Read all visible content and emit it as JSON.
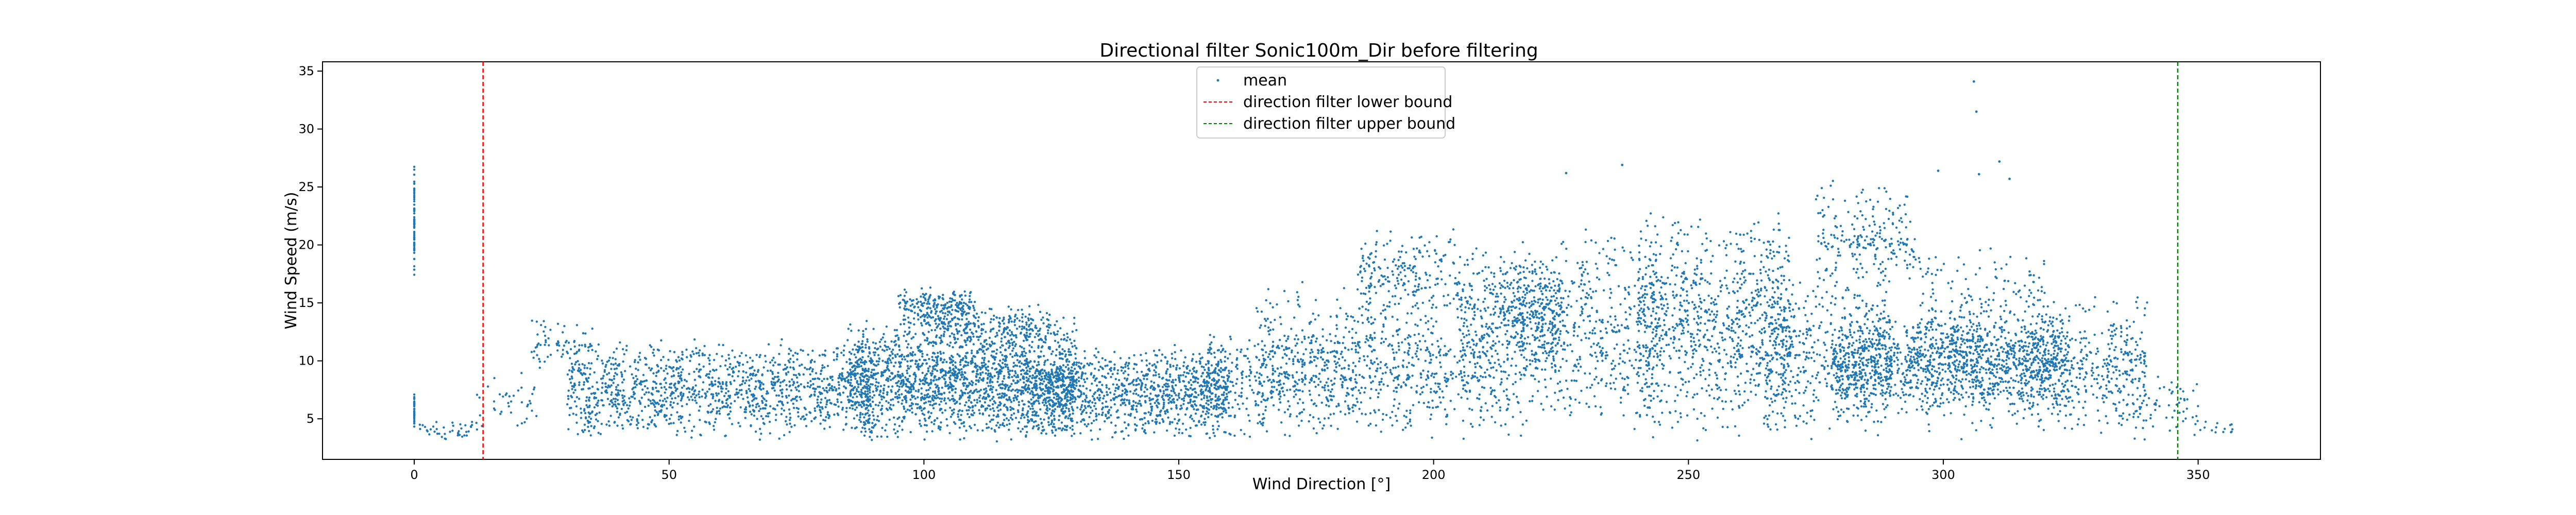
{
  "chart_data": {
    "type": "scatter",
    "title": "Directional filter Sonic100m_Dir before filtering",
    "xlabel": "Wind Direction [°]",
    "ylabel": "Wind Speed (m/s)",
    "xlim": [
      -18,
      374
    ],
    "ylim": [
      1.5,
      35.8
    ],
    "xticks": [
      0,
      50,
      100,
      150,
      200,
      250,
      300,
      350
    ],
    "yticks": [
      5,
      10,
      15,
      20,
      25,
      30,
      35
    ],
    "grid": false,
    "legend_position": "top-center",
    "series": [
      {
        "name": "mean",
        "color": "#1f77b4",
        "marker": "point",
        "clusters": [
          {
            "x": [
              0,
              0
            ],
            "y": [
              17,
              27.4
            ],
            "n": 70
          },
          {
            "x": [
              0,
              0
            ],
            "y": [
              3.8,
              7.2
            ],
            "n": 35
          },
          {
            "x": [
              1,
              12
            ],
            "y": [
              3.2,
              5.0
            ],
            "n": 40
          },
          {
            "x": [
              12,
              24
            ],
            "y": [
              3.5,
              9.5
            ],
            "n": 40
          },
          {
            "x": [
              23,
              35
            ],
            "y": [
              8.5,
              14
            ],
            "n": 70
          },
          {
            "x": [
              30,
              90
            ],
            "y": [
              3,
              12
            ],
            "n": 1300
          },
          {
            "x": [
              85,
              130
            ],
            "y": [
              3,
              14
            ],
            "n": 1900
          },
          {
            "x": [
              95,
              110
            ],
            "y": [
              13,
              16.5
            ],
            "n": 200
          },
          {
            "x": [
              100,
              125
            ],
            "y": [
              11,
              15
            ],
            "n": 200
          },
          {
            "x": [
              120,
              160
            ],
            "y": [
              3,
              11.5
            ],
            "n": 1100
          },
          {
            "x": [
              155,
              185
            ],
            "y": [
              3,
              13
            ],
            "n": 450
          },
          {
            "x": [
              165,
              200
            ],
            "y": [
              5,
              17
            ],
            "n": 300
          },
          {
            "x": [
              185,
              205
            ],
            "y": [
              13,
              21.5
            ],
            "n": 220
          },
          {
            "x": [
              185,
              215
            ],
            "y": [
              3,
              14
            ],
            "n": 350
          },
          {
            "x": [
              205,
              225
            ],
            "y": [
              8,
              20
            ],
            "n": 450
          },
          {
            "x": [
              215,
              245
            ],
            "y": [
              3,
              22
            ],
            "n": 600
          },
          {
            "x": [
              240,
              270
            ],
            "y": [
              3,
              23.5
            ],
            "n": 900
          },
          {
            "x": [
              265,
              290
            ],
            "y": [
              3,
              18
            ],
            "n": 500
          },
          {
            "x": [
              275,
              295
            ],
            "y": [
              15,
              26
            ],
            "n": 220
          },
          {
            "x": [
              278,
              325
            ],
            "y": [
              5,
              14
            ],
            "n": 1200
          },
          {
            "x": [
              295,
              320
            ],
            "y": [
              3,
              20
            ],
            "n": 450
          },
          {
            "x": [
              320,
              340
            ],
            "y": [
              3,
              16
            ],
            "n": 350
          },
          {
            "x": [
              335,
              350
            ],
            "y": [
              3,
              9
            ],
            "n": 60
          },
          {
            "x": [
              350,
              357
            ],
            "y": [
              3.5,
              5
            ],
            "n": 14
          }
        ],
        "outliers": [
          {
            "x": 306,
            "y": 34.1
          },
          {
            "x": 306.5,
            "y": 31.5
          },
          {
            "x": 311,
            "y": 27.2
          },
          {
            "x": 313,
            "y": 25.7
          },
          {
            "x": 237,
            "y": 26.9
          },
          {
            "x": 226,
            "y": 26.2
          },
          {
            "x": 299,
            "y": 26.4
          },
          {
            "x": 307,
            "y": 26.1
          }
        ]
      }
    ],
    "reference_lines": [
      {
        "name": "direction filter lower bound",
        "x": 13.5,
        "color": "#ff0000",
        "style": "dashed"
      },
      {
        "name": "direction filter upper bound",
        "x": 346,
        "color": "#008000",
        "style": "dashed"
      }
    ]
  }
}
